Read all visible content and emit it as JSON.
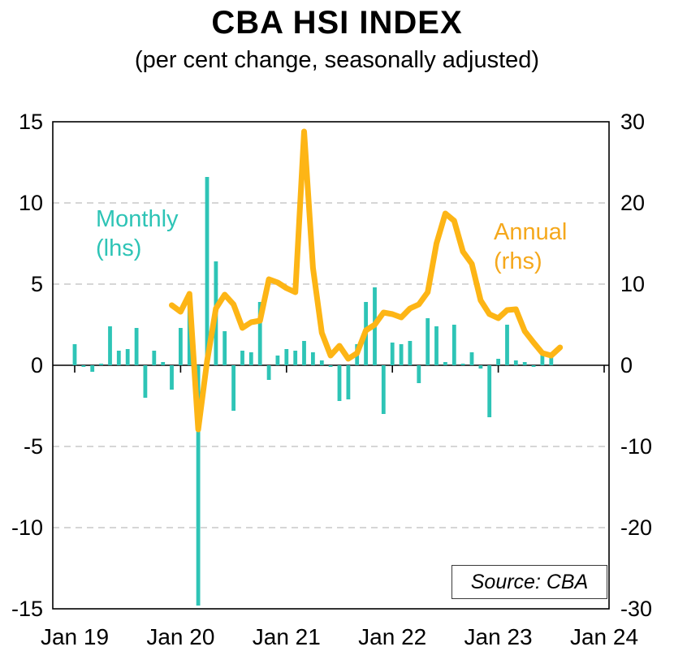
{
  "chart_data": {
    "type": "bar",
    "title": "CBA HSI INDEX",
    "subtitle": "(per cent change, seasonally adjusted)",
    "source_note": "Source: CBA",
    "x_axis": {
      "tick_labels": [
        "Jan 19",
        "Jan 20",
        "Jan 21",
        "Jan 22",
        "Jan 23",
        "Jan 24"
      ],
      "tick_month_indices": [
        0,
        12,
        24,
        36,
        48,
        60
      ],
      "total_months": 61,
      "start_month": "Jan 2019"
    },
    "left_axis": {
      "min": -15,
      "max": 15,
      "ticks": [
        15,
        10,
        5,
        0,
        -5,
        -10,
        -15
      ]
    },
    "right_axis": {
      "min": -30,
      "max": 30,
      "ticks": [
        30,
        20,
        10,
        0,
        -10,
        -20,
        -30
      ]
    },
    "grid": "dashed horizontal gridlines, solid zero line, framed plot area",
    "series": [
      {
        "name": "Monthly (lhs)",
        "label_line1": "Monthly",
        "label_line2": "(lhs)",
        "type": "bar",
        "axis": "left",
        "color": "#2EC4B6",
        "start_index": 0,
        "start_month": "Jan 2019",
        "values": [
          1.3,
          -0.1,
          -0.4,
          0.1,
          2.4,
          0.9,
          1.0,
          2.3,
          -2.0,
          0.9,
          0.2,
          -1.5,
          2.3,
          4.4,
          -14.8,
          11.6,
          6.4,
          2.1,
          -2.8,
          0.9,
          0.8,
          3.9,
          -0.9,
          0.6,
          1.0,
          0.9,
          1.5,
          0.8,
          0.3,
          -0.1,
          -2.2,
          -2.1,
          1.3,
          3.9,
          4.8,
          -3.0,
          1.4,
          1.3,
          1.5,
          -1.1,
          2.9,
          2.4,
          0.2,
          2.5,
          0.1,
          0.8,
          -0.2,
          -3.2,
          0.4,
          2.5,
          0.3,
          0.2,
          -0.1,
          0.8,
          0.8
        ]
      },
      {
        "name": "Annual (rhs)",
        "label_line1": "Annual",
        "label_line2": "(rhs)",
        "type": "line",
        "axis": "right",
        "color": "#FDB515",
        "start_index": 11,
        "start_month": "Dec 2019",
        "values": [
          7.4,
          6.6,
          8.8,
          -7.9,
          0.5,
          7.0,
          8.7,
          7.5,
          4.6,
          5.3,
          5.5,
          10.6,
          10.2,
          9.5,
          9.0,
          28.8,
          12.0,
          4.0,
          1.2,
          2.4,
          0.8,
          1.5,
          4.3,
          5.0,
          6.5,
          6.3,
          5.9,
          7.0,
          7.5,
          9.0,
          15.0,
          18.7,
          17.8,
          14.0,
          12.5,
          8.0,
          6.3,
          5.8,
          6.8,
          6.9,
          4.2,
          2.8,
          1.5,
          1.2,
          2.2
        ]
      }
    ]
  },
  "colors": {
    "bar": "#2EC4B6",
    "line": "#FDB515",
    "grid": "#C9C9C9",
    "axis": "#000000",
    "text": "#000000"
  }
}
